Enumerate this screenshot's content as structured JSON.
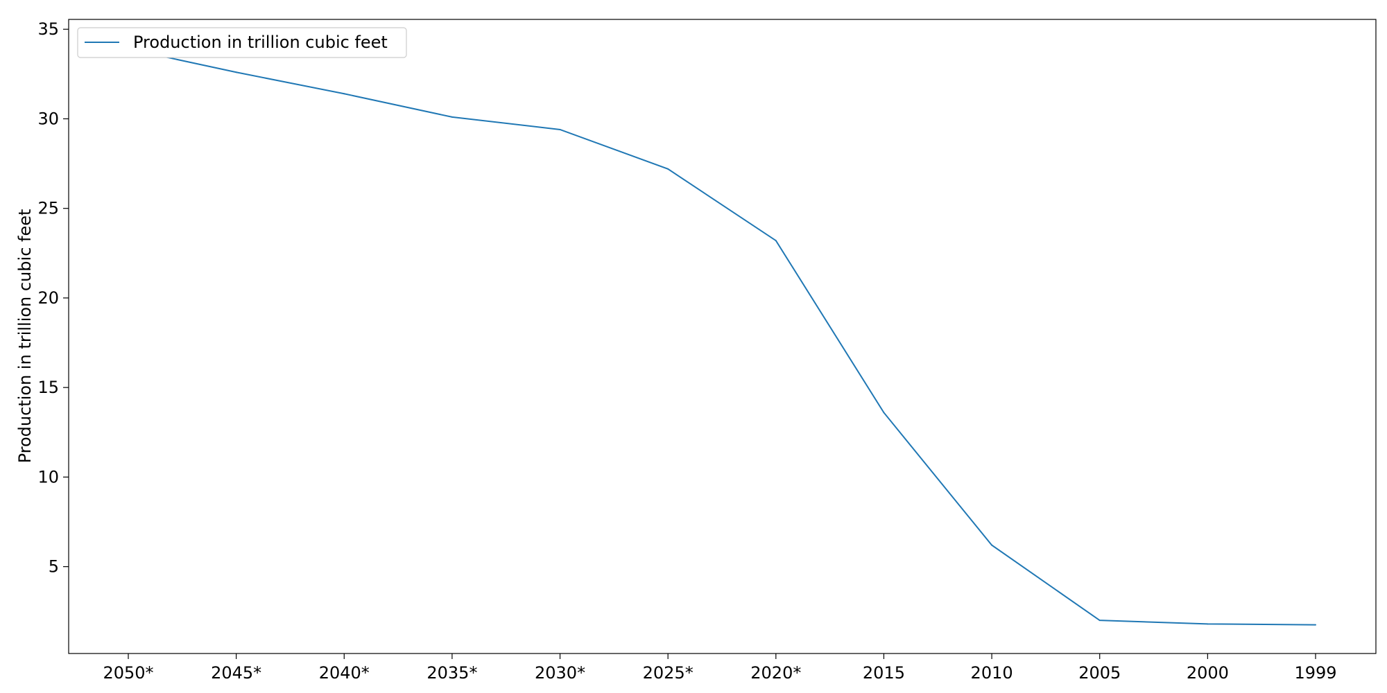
{
  "chart_data": {
    "type": "line",
    "categories": [
      "2050*",
      "2045*",
      "2040*",
      "2035*",
      "2030*",
      "2025*",
      "2020*",
      "2015",
      "2010",
      "2005",
      "2000",
      "1999"
    ],
    "series": [
      {
        "name": "Production in trillion cubic feet",
        "values": [
          33.9,
          32.6,
          31.4,
          30.1,
          29.4,
          27.2,
          23.2,
          13.6,
          6.2,
          2.0,
          1.8,
          1.75
        ],
        "color": "#1f77b4"
      }
    ],
    "ylabel": "Production in trillion cubic feet",
    "xlabel": "",
    "title": "",
    "ylim": [
      0.15,
      35.55
    ],
    "yticks": [
      5,
      10,
      15,
      20,
      25,
      30,
      35
    ],
    "grid": false,
    "legend": "upper-left"
  }
}
